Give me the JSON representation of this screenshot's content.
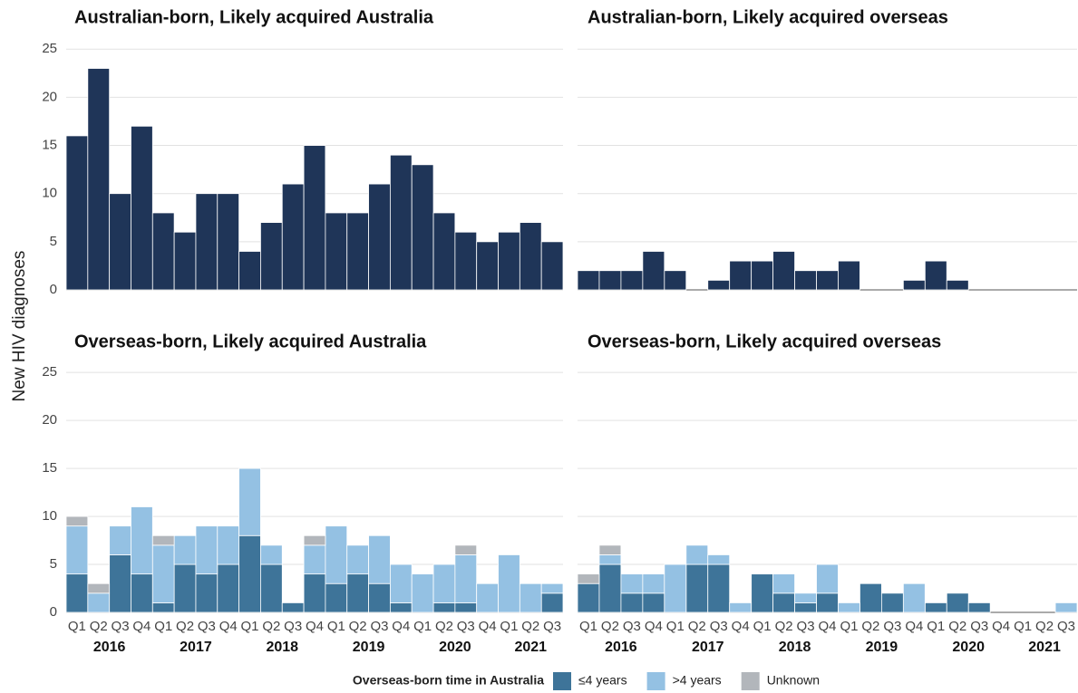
{
  "y_label": "New HIV diagnoses",
  "categories": [
    "Q1",
    "Q2",
    "Q3",
    "Q4",
    "Q1",
    "Q2",
    "Q3",
    "Q4",
    "Q1",
    "Q2",
    "Q3",
    "Q4",
    "Q1",
    "Q2",
    "Q3",
    "Q4",
    "Q1",
    "Q2",
    "Q3",
    "Q4",
    "Q1",
    "Q2",
    "Q3"
  ],
  "years": [
    "2016",
    "2017",
    "2018",
    "2019",
    "2020",
    "2021"
  ],
  "ylim": [
    0,
    27
  ],
  "yticks": [
    0,
    5,
    10,
    15,
    20,
    25
  ],
  "grid": true,
  "legend": {
    "title": "Overseas-born time in Australia",
    "position": "bottom",
    "entries": [
      {
        "name": "≤4 years",
        "color": "#3e7499"
      },
      {
        "name": ">4 years",
        "color": "#94c1e3"
      },
      {
        "name": "Unknown",
        "color": "#b2b6bb"
      }
    ]
  },
  "chart_data": [
    {
      "type": "bar",
      "title": "Australian-born, Likely acquired Australia",
      "color": "#1f3558",
      "values": [
        16,
        23,
        10,
        17,
        8,
        6,
        10,
        10,
        4,
        7,
        11,
        15,
        8,
        8,
        11,
        14,
        13,
        8,
        6,
        5,
        6,
        7,
        5
      ]
    },
    {
      "type": "bar",
      "title": "Australian-born, Likely acquired overseas",
      "color": "#1f3558",
      "values": [
        2,
        2,
        2,
        4,
        2,
        0,
        1,
        3,
        3,
        4,
        2,
        2,
        3,
        0,
        0,
        1,
        3,
        1,
        0,
        0,
        0,
        0,
        0
      ]
    },
    {
      "type": "stacked_bar",
      "title": "Overseas-born, Likely acquired Australia",
      "series": [
        {
          "values": [
            4,
            0,
            6,
            4,
            1,
            5,
            4,
            5,
            8,
            5,
            1,
            4,
            3,
            4,
            3,
            1,
            0,
            1,
            1,
            0,
            0,
            0,
            2
          ]
        },
        {
          "values": [
            5,
            2,
            3,
            7,
            6,
            3,
            5,
            4,
            7,
            2,
            0,
            3,
            6,
            3,
            5,
            4,
            4,
            4,
            5,
            3,
            6,
            3,
            1
          ]
        },
        {
          "values": [
            1,
            1,
            0,
            0,
            1,
            0,
            0,
            0,
            0,
            0,
            0,
            1,
            0,
            0,
            0,
            0,
            0,
            0,
            1,
            0,
            0,
            0,
            0
          ]
        }
      ]
    },
    {
      "type": "stacked_bar",
      "title": "Overseas-born, Likely acquired overseas",
      "series": [
        {
          "values": [
            3,
            5,
            2,
            2,
            0,
            5,
            5,
            0,
            4,
            2,
            1,
            2,
            0,
            3,
            2,
            0,
            1,
            2,
            1,
            0,
            0,
            0,
            0
          ]
        },
        {
          "values": [
            0,
            1,
            2,
            2,
            5,
            2,
            1,
            1,
            0,
            2,
            1,
            3,
            1,
            0,
            0,
            3,
            0,
            0,
            0,
            0,
            0,
            0,
            1
          ]
        },
        {
          "values": [
            1,
            1,
            0,
            0,
            0,
            0,
            0,
            0,
            0,
            0,
            0,
            0,
            0,
            0,
            0,
            0,
            0,
            0,
            0,
            0,
            0,
            0,
            0
          ]
        }
      ]
    }
  ]
}
